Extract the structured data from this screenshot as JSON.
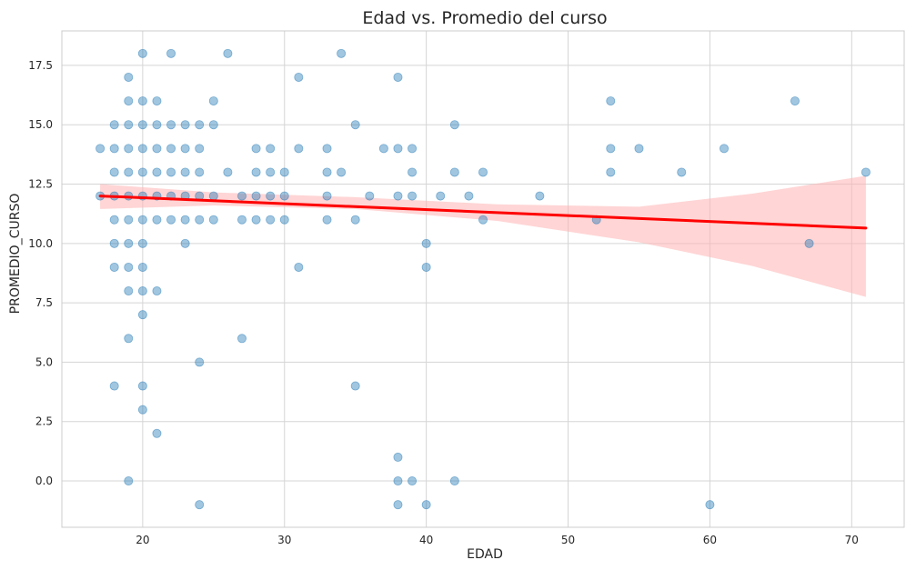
{
  "chart_data": {
    "type": "scatter",
    "title": "Edad vs. Promedio del curso",
    "xlabel": "EDAD",
    "ylabel": "PROMEDIO_CURSO",
    "xlim": [
      14.3,
      73.7
    ],
    "ylim": [
      -1.95,
      18.95
    ],
    "xticks": [
      20,
      30,
      40,
      50,
      60,
      70
    ],
    "yticks": [
      0.0,
      2.5,
      5.0,
      7.5,
      10.0,
      12.5,
      15.0,
      17.5
    ],
    "xtick_labels": [
      "20",
      "30",
      "40",
      "50",
      "60",
      "70"
    ],
    "ytick_labels": [
      "0.0",
      "2.5",
      "5.0",
      "7.5",
      "10.0",
      "12.5",
      "15.0",
      "17.5"
    ],
    "grid": true,
    "colors": {
      "points": "#1f77b4",
      "regression_line": "#ff0000",
      "confidence_band": "#ffb3b3",
      "grid": "#d5d5d5"
    },
    "points": [
      [
        17,
        14
      ],
      [
        17,
        12
      ],
      [
        18,
        15
      ],
      [
        18,
        14
      ],
      [
        18,
        13
      ],
      [
        18,
        12
      ],
      [
        18,
        11
      ],
      [
        18,
        10
      ],
      [
        18,
        9
      ],
      [
        18,
        4
      ],
      [
        19,
        17
      ],
      [
        19,
        16
      ],
      [
        19,
        15
      ],
      [
        19,
        14
      ],
      [
        19,
        13
      ],
      [
        19,
        12
      ],
      [
        19,
        11
      ],
      [
        19,
        10
      ],
      [
        19,
        9
      ],
      [
        19,
        8
      ],
      [
        19,
        6
      ],
      [
        19,
        0
      ],
      [
        20,
        18
      ],
      [
        20,
        16
      ],
      [
        20,
        15
      ],
      [
        20,
        14
      ],
      [
        20,
        13
      ],
      [
        20,
        12
      ],
      [
        20,
        11
      ],
      [
        20,
        10
      ],
      [
        20,
        9
      ],
      [
        20,
        8
      ],
      [
        20,
        7
      ],
      [
        20,
        4
      ],
      [
        20,
        3
      ],
      [
        21,
        16
      ],
      [
        21,
        15
      ],
      [
        21,
        14
      ],
      [
        21,
        13
      ],
      [
        21,
        12
      ],
      [
        21,
        11
      ],
      [
        21,
        8
      ],
      [
        21,
        2
      ],
      [
        22,
        18
      ],
      [
        22,
        15
      ],
      [
        22,
        14
      ],
      [
        22,
        13
      ],
      [
        22,
        12
      ],
      [
        22,
        11
      ],
      [
        23,
        15
      ],
      [
        23,
        14
      ],
      [
        23,
        13
      ],
      [
        23,
        12
      ],
      [
        23,
        11
      ],
      [
        23,
        10
      ],
      [
        24,
        15
      ],
      [
        24,
        14
      ],
      [
        24,
        13
      ],
      [
        24,
        12
      ],
      [
        24,
        11
      ],
      [
        24,
        5
      ],
      [
        24,
        -1
      ],
      [
        25,
        16
      ],
      [
        25,
        15
      ],
      [
        25,
        12
      ],
      [
        25,
        11
      ],
      [
        26,
        18
      ],
      [
        26,
        13
      ],
      [
        27,
        12
      ],
      [
        27,
        11
      ],
      [
        27,
        6
      ],
      [
        28,
        14
      ],
      [
        28,
        13
      ],
      [
        28,
        12
      ],
      [
        28,
        11
      ],
      [
        29,
        14
      ],
      [
        29,
        13
      ],
      [
        29,
        12
      ],
      [
        29,
        11
      ],
      [
        30,
        13
      ],
      [
        30,
        12
      ],
      [
        30,
        11
      ],
      [
        31,
        17
      ],
      [
        31,
        14
      ],
      [
        31,
        9
      ],
      [
        33,
        14
      ],
      [
        33,
        13
      ],
      [
        33,
        12
      ],
      [
        33,
        11
      ],
      [
        34,
        18
      ],
      [
        34,
        13
      ],
      [
        35,
        15
      ],
      [
        35,
        11
      ],
      [
        35,
        4
      ],
      [
        36,
        12
      ],
      [
        37,
        14
      ],
      [
        38,
        17
      ],
      [
        38,
        14
      ],
      [
        38,
        12
      ],
      [
        38,
        1
      ],
      [
        38,
        0
      ],
      [
        38,
        -1
      ],
      [
        39,
        14
      ],
      [
        39,
        13
      ],
      [
        39,
        12
      ],
      [
        39,
        0
      ],
      [
        40,
        10
      ],
      [
        40,
        9
      ],
      [
        40,
        -1
      ],
      [
        41,
        12
      ],
      [
        42,
        15
      ],
      [
        42,
        13
      ],
      [
        42,
        0
      ],
      [
        43,
        12
      ],
      [
        44,
        13
      ],
      [
        44,
        11
      ],
      [
        48,
        12
      ],
      [
        52,
        11
      ],
      [
        53,
        16
      ],
      [
        53,
        14
      ],
      [
        53,
        13
      ],
      [
        55,
        14
      ],
      [
        58,
        13
      ],
      [
        60,
        -1
      ],
      [
        61,
        14
      ],
      [
        66,
        16
      ],
      [
        67,
        10
      ],
      [
        71,
        13
      ]
    ],
    "regression": {
      "x": [
        17,
        71
      ],
      "y": [
        12.0,
        10.65
      ]
    },
    "confidence_band": {
      "x": [
        17,
        25,
        35,
        45,
        55,
        63,
        71
      ],
      "lower": [
        11.45,
        11.6,
        11.45,
        10.95,
        10.05,
        9.05,
        7.75
      ],
      "upper": [
        12.5,
        12.15,
        11.95,
        11.65,
        11.55,
        12.1,
        12.85
      ]
    }
  }
}
